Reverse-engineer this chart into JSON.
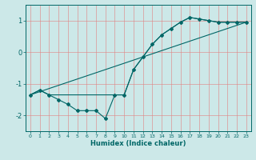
{
  "title": "",
  "xlabel": "Humidex (Indice chaleur)",
  "background_color": "#cce8e8",
  "grid_color": "#e08080",
  "line_color": "#006666",
  "xlim": [
    -0.5,
    23.5
  ],
  "ylim": [
    -2.5,
    1.5
  ],
  "yticks": [
    -2,
    -1,
    0,
    1
  ],
  "xticks": [
    0,
    1,
    2,
    3,
    4,
    5,
    6,
    7,
    8,
    9,
    10,
    11,
    12,
    13,
    14,
    15,
    16,
    17,
    18,
    19,
    20,
    21,
    22,
    23
  ],
  "line1_x": [
    0,
    1,
    2,
    3,
    4,
    5,
    6,
    7,
    8,
    9,
    10,
    11,
    12,
    13,
    14,
    15,
    16,
    17,
    18,
    19,
    20,
    21,
    22,
    23
  ],
  "line1_y": [
    -1.35,
    -1.2,
    -1.35,
    -1.5,
    -1.65,
    -1.85,
    -1.85,
    -1.85,
    -2.1,
    -1.35,
    -1.35,
    -0.55,
    -0.15,
    0.25,
    0.55,
    0.75,
    0.95,
    1.1,
    1.05,
    1.0,
    0.95,
    0.95,
    0.95,
    0.95
  ],
  "line2_x": [
    0,
    1,
    2,
    3,
    4,
    5,
    6,
    7,
    8,
    9,
    10,
    11,
    12,
    13,
    14,
    15,
    16,
    17,
    18,
    19,
    20,
    21,
    22,
    23
  ],
  "line2_y": [
    -1.35,
    -1.2,
    -1.35,
    -1.35,
    -1.35,
    -1.35,
    -1.35,
    -1.35,
    -1.35,
    -1.35,
    -1.35,
    -0.55,
    -0.15,
    0.25,
    0.55,
    0.75,
    0.95,
    1.1,
    1.05,
    1.0,
    0.95,
    0.95,
    0.95,
    0.95
  ],
  "line3_x": [
    0,
    23
  ],
  "line3_y": [
    -1.35,
    0.95
  ]
}
